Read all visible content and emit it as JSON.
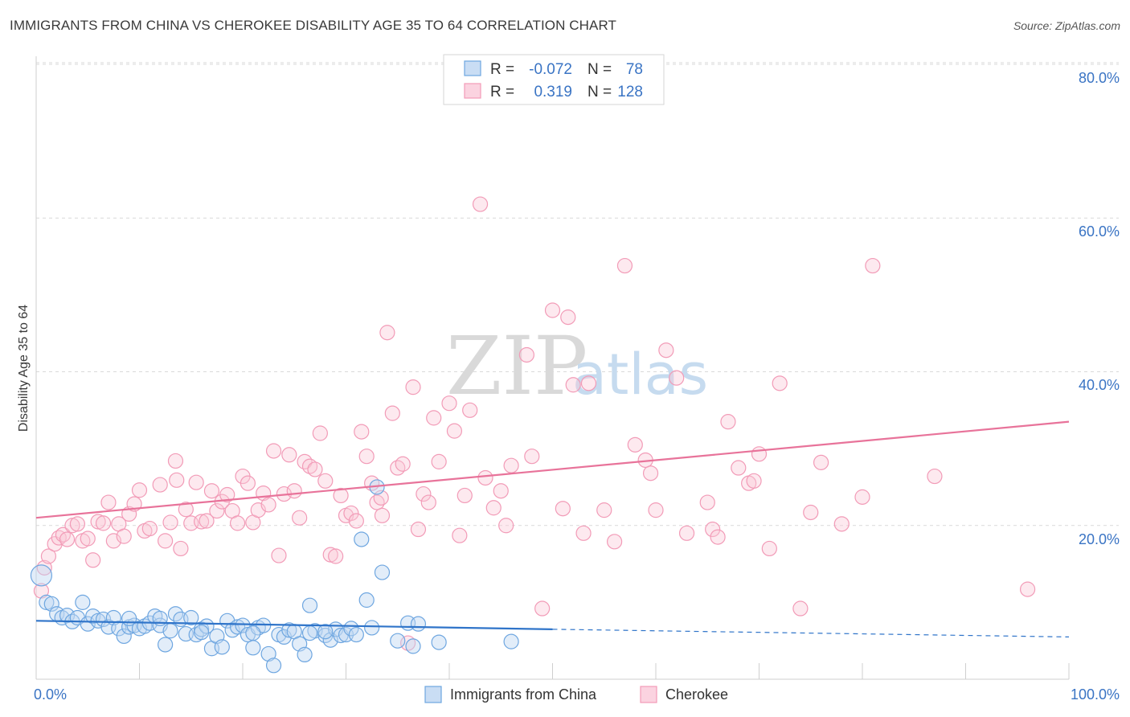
{
  "title": "IMMIGRANTS FROM CHINA VS CHEROKEE DISABILITY AGE 35 TO 64 CORRELATION CHART",
  "source": "Source: ZipAtlas.com",
  "watermark": {
    "part1": "ZIP",
    "part2": "atlas"
  },
  "colors": {
    "blue": "#6ea6e0",
    "blue_line": "#2f74c9",
    "pink": "#f29bb7",
    "pink_line": "#e8739a",
    "grid": "#d9d9d9",
    "axis_text": "#3a74c4"
  },
  "legend": {
    "rows": [
      {
        "r_label": "R =",
        "r_value": "-0.072",
        "n_label": "N =",
        "n_value": "78"
      },
      {
        "r_label": "R =",
        "r_value": "0.319",
        "n_label": "N =",
        "n_value": "128"
      }
    ]
  },
  "bottom_legend": [
    "Immigrants from China",
    "Cherokee"
  ],
  "chart_data": {
    "type": "scatter",
    "title": "IMMIGRANTS FROM CHINA VS CHEROKEE DISABILITY AGE 35 TO 64 CORRELATION CHART",
    "xlabel": "",
    "ylabel": "Disability Age 35 to 64",
    "xlim": [
      0,
      100
    ],
    "ylim": [
      0,
      85
    ],
    "x_tick_labels": [
      "0.0%",
      "100.0%"
    ],
    "y_tick_labels": [
      "20.0%",
      "40.0%",
      "60.0%",
      "80.0%"
    ],
    "y_ticks": [
      20,
      40,
      60,
      80
    ],
    "grid": true,
    "legend_position": "top-center",
    "series": [
      {
        "name": "Immigrants from China",
        "color": "#6ea6e0",
        "trend": {
          "x": [
            0,
            50
          ],
          "y": [
            7.6,
            6.5
          ],
          "dashed_extension": {
            "x": [
              50,
              100
            ],
            "y": [
              6.5,
              5.5
            ]
          }
        },
        "points": [
          [
            0.5,
            13.5
          ],
          [
            1,
            10
          ],
          [
            1.5,
            9.8
          ],
          [
            2,
            8.5
          ],
          [
            2.5,
            8.0
          ],
          [
            3,
            8.3
          ],
          [
            3.5,
            7.5
          ],
          [
            4,
            8.0
          ],
          [
            4.5,
            10.0
          ],
          [
            5,
            7.2
          ],
          [
            5.5,
            8.2
          ],
          [
            6,
            7.6
          ],
          [
            6.5,
            7.8
          ],
          [
            7,
            6.8
          ],
          [
            7.5,
            8.0
          ],
          [
            8,
            6.6
          ],
          [
            8.5,
            5.6
          ],
          [
            9,
            6.8
          ],
          [
            9.5,
            7.0
          ],
          [
            10,
            6.6
          ],
          [
            10.5,
            6.9
          ],
          [
            11,
            7.3
          ],
          [
            11.5,
            8.2
          ],
          [
            12,
            7.0
          ],
          [
            12.5,
            4.5
          ],
          [
            13,
            6.3
          ],
          [
            13.5,
            8.5
          ],
          [
            14,
            7.8
          ],
          [
            14.5,
            5.9
          ],
          [
            15,
            8.0
          ],
          [
            15.5,
            5.8
          ],
          [
            16,
            6.5
          ],
          [
            16.5,
            6.9
          ],
          [
            17,
            4.0
          ],
          [
            17.5,
            5.6
          ],
          [
            18,
            4.2
          ],
          [
            18.5,
            7.6
          ],
          [
            19,
            6.4
          ],
          [
            19.5,
            6.8
          ],
          [
            20,
            7.0
          ],
          [
            20.5,
            5.8
          ],
          [
            21,
            4.1
          ],
          [
            21.5,
            6.7
          ],
          [
            22,
            7.0
          ],
          [
            22.5,
            3.3
          ],
          [
            23,
            1.8
          ],
          [
            23.5,
            5.8
          ],
          [
            24,
            5.5
          ],
          [
            24.5,
            6.4
          ],
          [
            25,
            6.2
          ],
          [
            25.5,
            4.6
          ],
          [
            26,
            3.2
          ],
          [
            26.5,
            9.6
          ],
          [
            27,
            6.3
          ],
          [
            28,
            5.7
          ],
          [
            28.5,
            5.1
          ],
          [
            29,
            6.5
          ],
          [
            29.5,
            5.7
          ],
          [
            30,
            5.8
          ],
          [
            30.5,
            6.6
          ],
          [
            31,
            5.8
          ],
          [
            31.5,
            18.2
          ],
          [
            32,
            10.3
          ],
          [
            32.5,
            6.7
          ],
          [
            33,
            25.0
          ],
          [
            33.5,
            13.9
          ],
          [
            35,
            5.0
          ],
          [
            36,
            7.3
          ],
          [
            36.5,
            4.3
          ],
          [
            37,
            7.2
          ],
          [
            39,
            4.8
          ],
          [
            46,
            4.9
          ],
          [
            26.5,
            6.0
          ],
          [
            28,
            6.2
          ],
          [
            21,
            6.0
          ],
          [
            16,
            6.1
          ],
          [
            12,
            7.9
          ],
          [
            9,
            7.9
          ]
        ]
      },
      {
        "name": "Cherokee",
        "color": "#f29bb7",
        "trend": {
          "x": [
            0,
            100
          ],
          "y": [
            21.0,
            33.5
          ]
        },
        "points": [
          [
            0.5,
            11.5
          ],
          [
            0.8,
            14.5
          ],
          [
            1.2,
            16.0
          ],
          [
            1.8,
            17.6
          ],
          [
            2.2,
            18.4
          ],
          [
            2.6,
            18.8
          ],
          [
            3,
            18.2
          ],
          [
            3.5,
            20.0
          ],
          [
            4,
            20.2
          ],
          [
            4.5,
            18.0
          ],
          [
            5,
            18.3
          ],
          [
            5.5,
            15.5
          ],
          [
            6,
            20.5
          ],
          [
            6.5,
            20.3
          ],
          [
            7,
            23.0
          ],
          [
            7.5,
            18.0
          ],
          [
            8,
            20.2
          ],
          [
            8.5,
            18.6
          ],
          [
            9,
            21.5
          ],
          [
            9.5,
            22.8
          ],
          [
            10,
            24.6
          ],
          [
            10.5,
            19.3
          ],
          [
            11,
            19.6
          ],
          [
            12,
            25.3
          ],
          [
            12.5,
            18.0
          ],
          [
            13,
            20.4
          ],
          [
            13.5,
            28.4
          ],
          [
            14,
            17.0
          ],
          [
            14.5,
            22.1
          ],
          [
            15,
            20.3
          ],
          [
            15.5,
            25.6
          ],
          [
            16,
            20.5
          ],
          [
            16.5,
            20.6
          ],
          [
            17,
            24.5
          ],
          [
            17.5,
            21.9
          ],
          [
            18,
            23.1
          ],
          [
            18.5,
            24.0
          ],
          [
            19,
            21.9
          ],
          [
            19.5,
            20.3
          ],
          [
            20,
            26.4
          ],
          [
            20.5,
            25.5
          ],
          [
            21,
            20.4
          ],
          [
            21.5,
            22.0
          ],
          [
            22,
            24.2
          ],
          [
            22.5,
            22.7
          ],
          [
            23,
            29.7
          ],
          [
            23.5,
            16.1
          ],
          [
            24,
            24.1
          ],
          [
            24.5,
            29.2
          ],
          [
            25,
            24.5
          ],
          [
            25.5,
            21.0
          ],
          [
            26,
            28.3
          ],
          [
            26.5,
            27.7
          ],
          [
            27,
            27.3
          ],
          [
            27.5,
            32.0
          ],
          [
            28,
            25.8
          ],
          [
            28.5,
            16.2
          ],
          [
            29,
            16.0
          ],
          [
            29.5,
            23.9
          ],
          [
            30,
            21.3
          ],
          [
            30.5,
            21.6
          ],
          [
            31,
            20.6
          ],
          [
            31.5,
            32.2
          ],
          [
            32,
            29.0
          ],
          [
            32.5,
            25.5
          ],
          [
            33,
            23.0
          ],
          [
            33.5,
            21.3
          ],
          [
            34,
            45.1
          ],
          [
            34.5,
            34.6
          ],
          [
            35,
            27.5
          ],
          [
            35.5,
            28.0
          ],
          [
            36,
            4.7
          ],
          [
            36.5,
            38.0
          ],
          [
            37,
            19.5
          ],
          [
            37.5,
            24.1
          ],
          [
            38,
            23.0
          ],
          [
            38.5,
            34.0
          ],
          [
            39,
            28.3
          ],
          [
            40,
            35.9
          ],
          [
            40.5,
            32.3
          ],
          [
            41,
            18.7
          ],
          [
            41.5,
            23.9
          ],
          [
            42,
            35.0
          ],
          [
            43,
            61.8
          ],
          [
            43.5,
            26.2
          ],
          [
            45,
            24.5
          ],
          [
            45.5,
            20.0
          ],
          [
            46,
            27.8
          ],
          [
            47.5,
            42.2
          ],
          [
            48,
            29.0
          ],
          [
            49,
            9.2
          ],
          [
            50,
            48.0
          ],
          [
            51,
            22.2
          ],
          [
            51.5,
            47.1
          ],
          [
            52,
            38.3
          ],
          [
            53,
            19.0
          ],
          [
            53.5,
            38.5
          ],
          [
            55,
            22.0
          ],
          [
            56,
            17.9
          ],
          [
            57,
            53.8
          ],
          [
            58,
            30.5
          ],
          [
            59,
            28.5
          ],
          [
            59.5,
            26.8
          ],
          [
            60,
            22.0
          ],
          [
            61,
            42.8
          ],
          [
            62,
            39.2
          ],
          [
            63,
            19.0
          ],
          [
            65,
            23.0
          ],
          [
            65.5,
            19.5
          ],
          [
            66,
            18.5
          ],
          [
            67,
            33.5
          ],
          [
            68,
            27.5
          ],
          [
            69,
            25.5
          ],
          [
            69.5,
            25.8
          ],
          [
            70,
            29.3
          ],
          [
            71,
            17.0
          ],
          [
            72,
            38.5
          ],
          [
            74,
            9.2
          ],
          [
            75,
            21.7
          ],
          [
            76,
            28.2
          ],
          [
            78,
            20.2
          ],
          [
            80,
            23.7
          ],
          [
            81,
            53.8
          ],
          [
            87,
            26.4
          ],
          [
            96,
            11.7
          ],
          [
            13.6,
            25.9
          ],
          [
            33.4,
            23.6
          ],
          [
            44.3,
            22.3
          ]
        ]
      }
    ]
  }
}
